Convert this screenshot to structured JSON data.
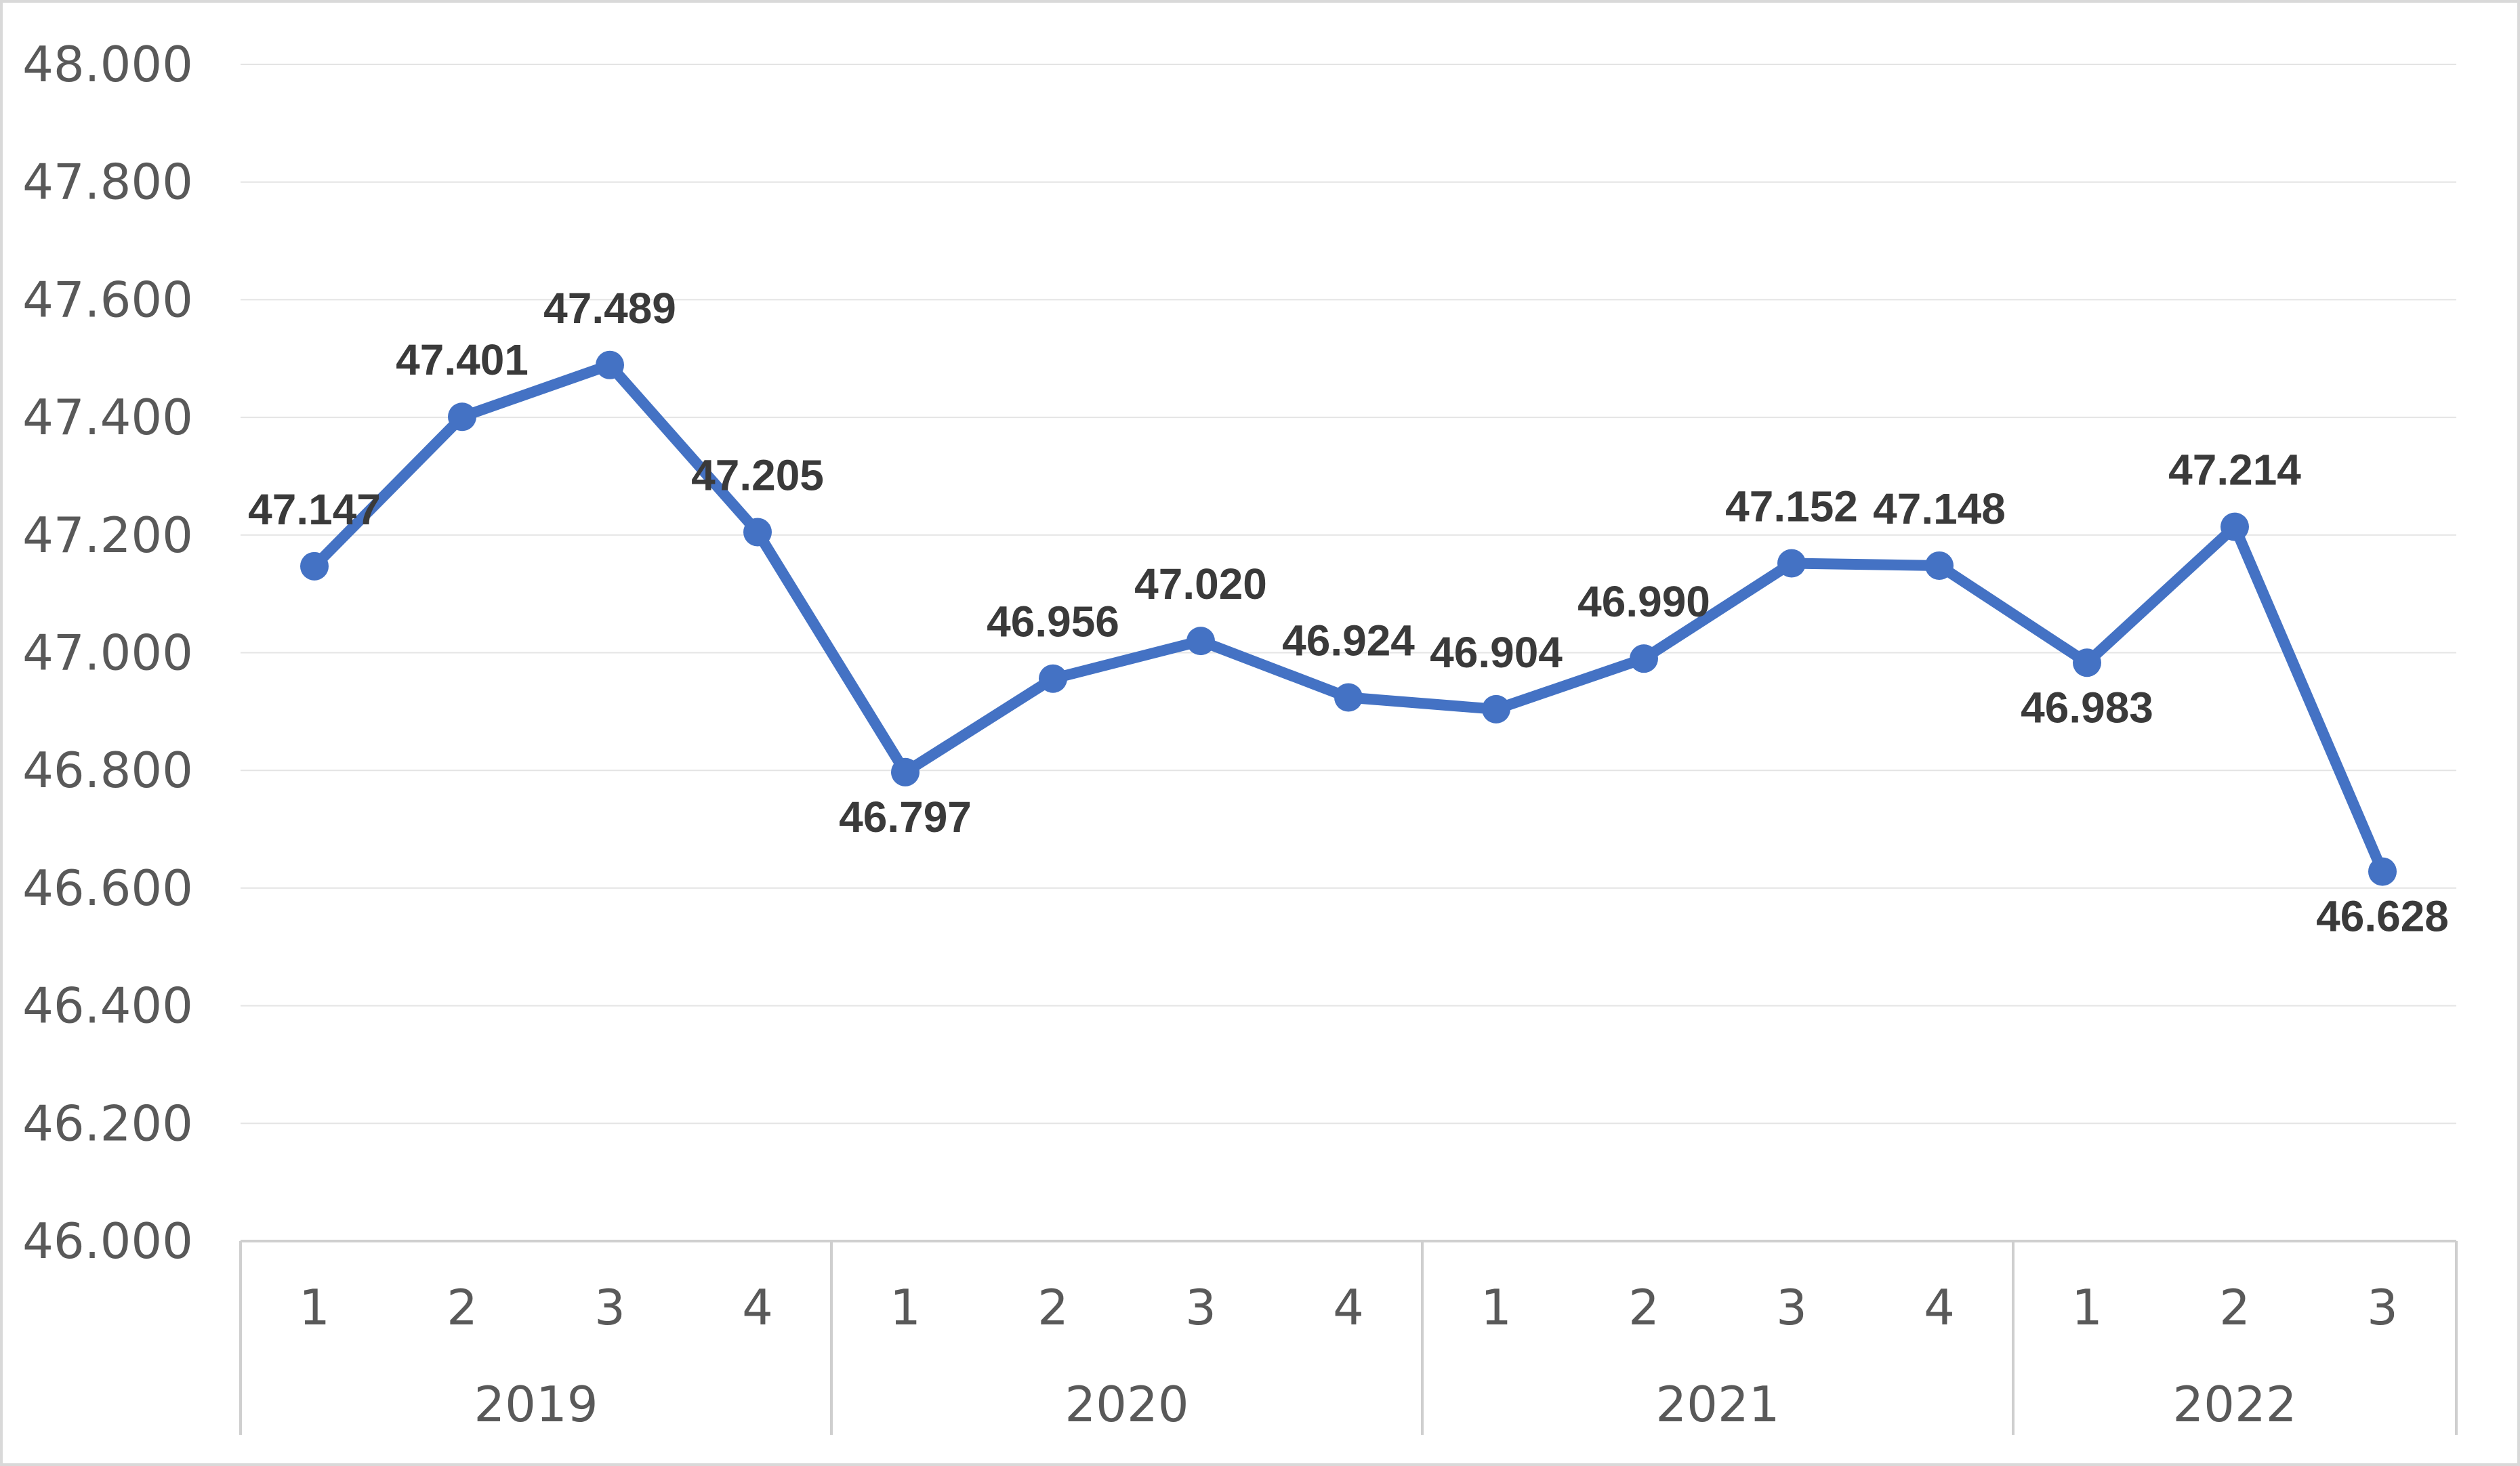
{
  "chart_data": {
    "type": "line",
    "title": "",
    "xlabel": "",
    "ylabel": "",
    "ylim": [
      46000,
      48000
    ],
    "y_ticks": [
      "46.000",
      "46.200",
      "46.400",
      "46.600",
      "46.800",
      "47.000",
      "47.200",
      "47.400",
      "47.600",
      "47.800",
      "48.000"
    ],
    "grid": true,
    "legend": "none",
    "groups": [
      {
        "label": "2019",
        "quarters": [
          "1",
          "2",
          "3",
          "4"
        ]
      },
      {
        "label": "2020",
        "quarters": [
          "1",
          "2",
          "3",
          "4"
        ]
      },
      {
        "label": "2021",
        "quarters": [
          "1",
          "2",
          "3",
          "4"
        ]
      },
      {
        "label": "2022",
        "quarters": [
          "1",
          "2",
          "3"
        ]
      }
    ],
    "series": [
      {
        "color": "#4472c4",
        "values": [
          47147,
          47401,
          47489,
          47205,
          46797,
          46956,
          47020,
          46924,
          46904,
          46990,
          47152,
          47148,
          46983,
          47214,
          46628
        ],
        "labels": [
          "47.147",
          "47.401",
          "47.489",
          "47.205",
          "46.797",
          "46.956",
          "47.020",
          "46.924",
          "46.904",
          "46.990",
          "47.152",
          "47.148",
          "46.983",
          "47.214",
          "46.628"
        ],
        "label_positions": [
          "above",
          "above",
          "above",
          "above",
          "below",
          "above",
          "above",
          "above",
          "above",
          "above",
          "above",
          "above",
          "below",
          "above",
          "below"
        ]
      }
    ]
  }
}
